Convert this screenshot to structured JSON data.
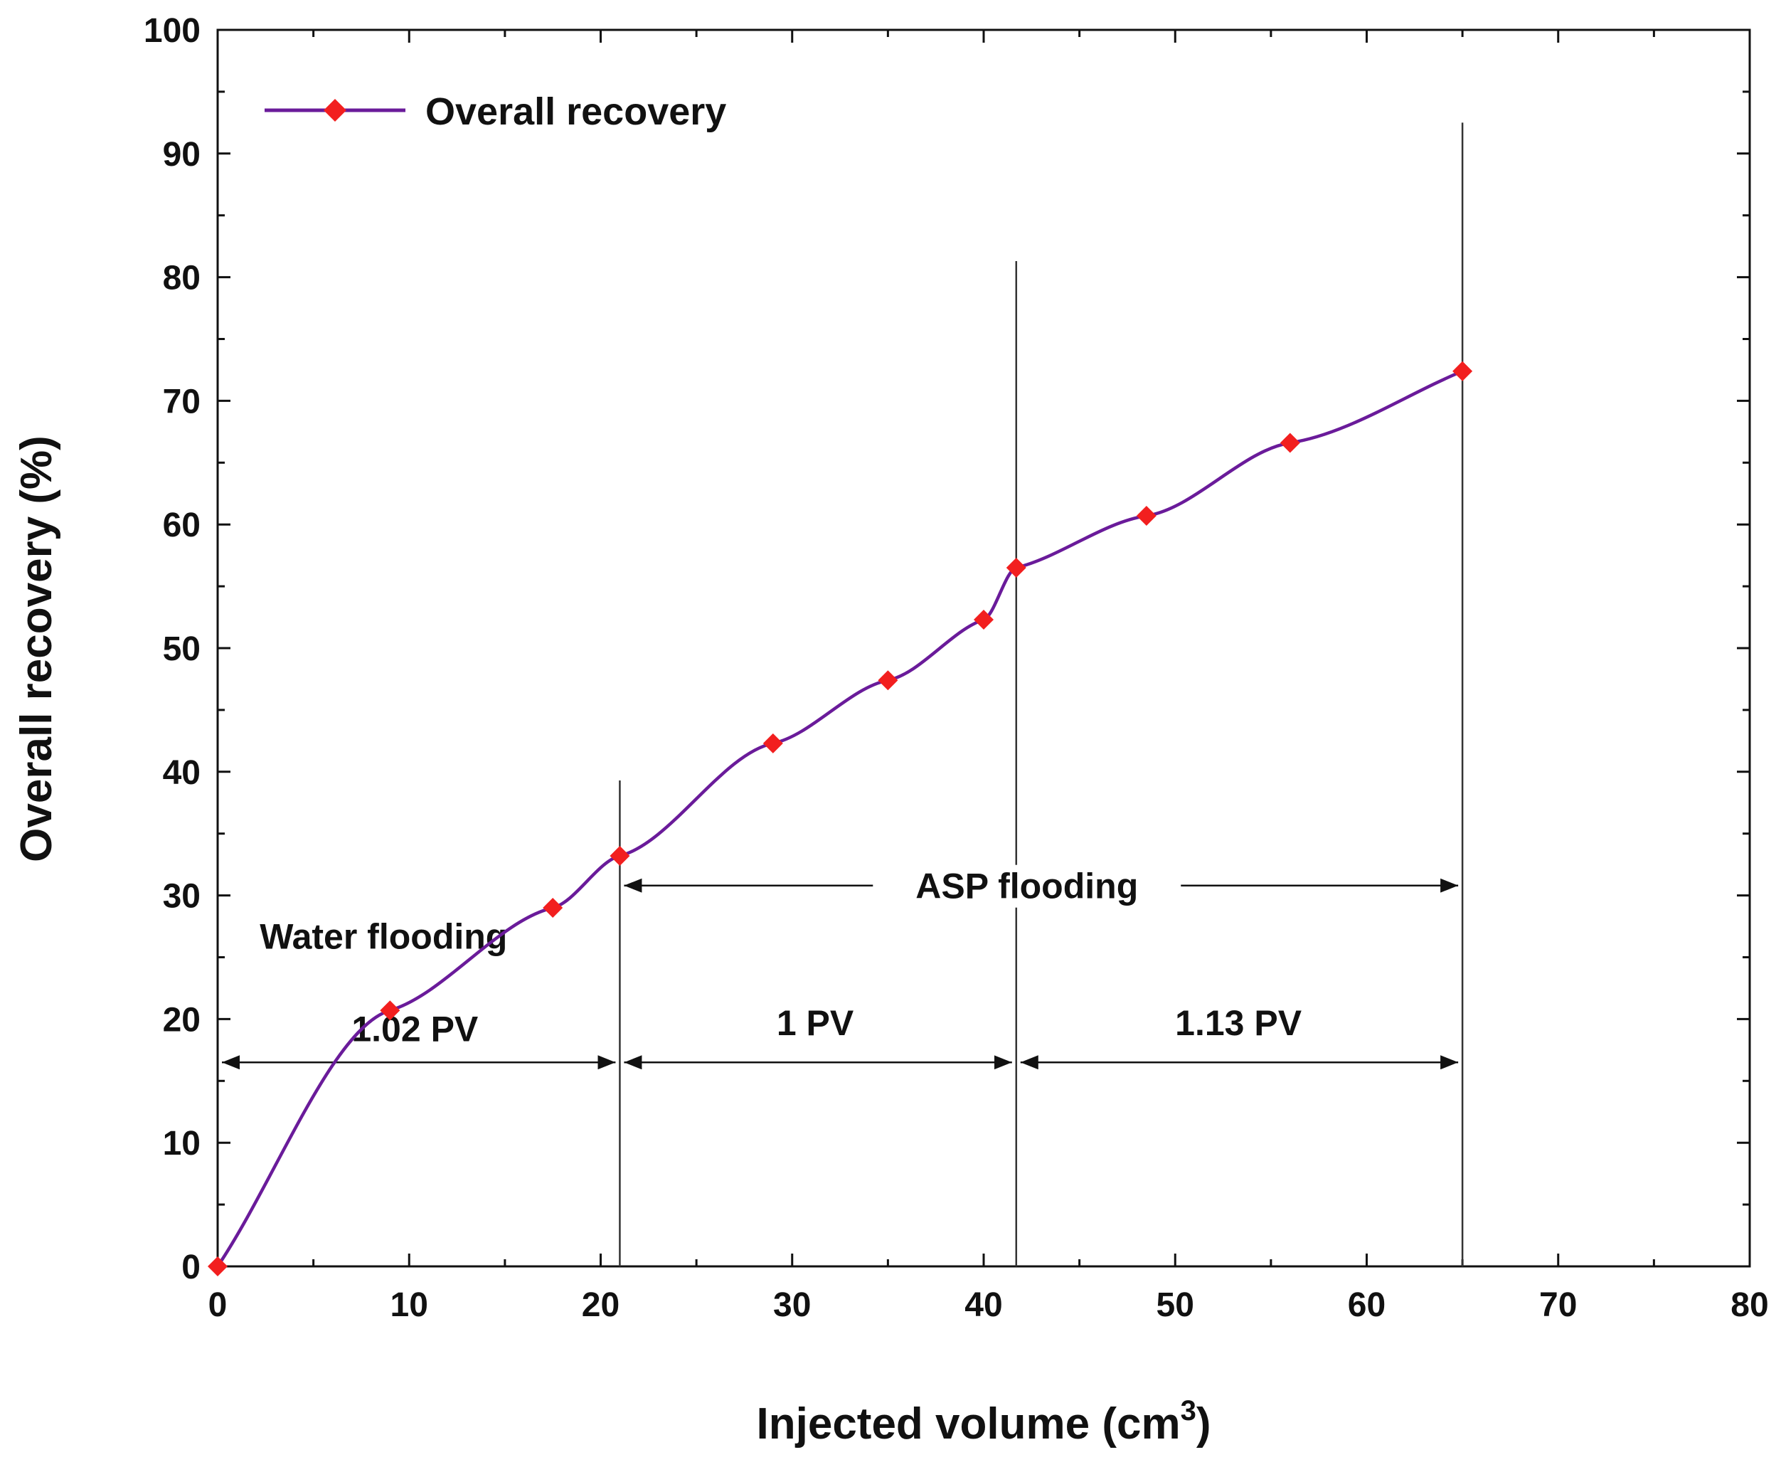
{
  "chart_data": {
    "type": "line",
    "xlabel": "Injected volume (cm",
    "xlabel_sup": "3",
    "xlabel_end": ")",
    "ylabel": "Overall recovery (%)",
    "xlim": [
      0,
      80
    ],
    "ylim": [
      0,
      100
    ],
    "x_ticks": [
      "0",
      "10",
      "20",
      "30",
      "40",
      "50",
      "60",
      "70",
      "80"
    ],
    "y_ticks": [
      "0",
      "10",
      "20",
      "30",
      "40",
      "50",
      "60",
      "70",
      "80",
      "90",
      "100"
    ],
    "grid": false,
    "legend_position": "top-left",
    "series": [
      {
        "name": "Overall recovery",
        "line_color": "#6a1b9a",
        "marker_color": "#f21f1f",
        "x": [
          0,
          9,
          17.5,
          21,
          29,
          35,
          40,
          41.7,
          48.5,
          56,
          65
        ],
        "y": [
          0,
          20.7,
          29,
          33.2,
          42.3,
          47.4,
          52.3,
          56.5,
          60.7,
          66.6,
          72.4
        ]
      }
    ],
    "vertical_lines": [
      {
        "x": 21,
        "y_top": 39.3
      },
      {
        "x": 41.7,
        "y_top": 81.3
      },
      {
        "x": 65,
        "y_top": 92.5
      }
    ],
    "annotations": {
      "water_flooding": "Water flooding",
      "asp_flooding": "ASP flooding",
      "pv_1": "1.02 PV",
      "pv_2": "1 PV",
      "pv_3": "1.13 PV"
    },
    "arrows": [
      {
        "x_start": 0,
        "x_end": 21,
        "y": 16.5
      },
      {
        "x_start": 21,
        "x_end": 41.7,
        "y": 16.5
      },
      {
        "x_start": 41.7,
        "x_end": 65,
        "y": 16.5
      },
      {
        "x_start": 21,
        "x_end": 65,
        "y": 30.8
      }
    ]
  }
}
